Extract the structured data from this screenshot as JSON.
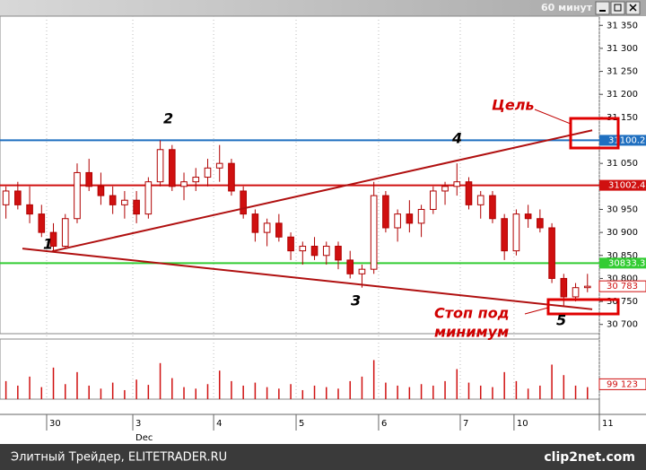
{
  "chart_data": {
    "type": "candlestick",
    "window_title": "60 минут",
    "xlim": [
      -0.5,
      50
    ],
    "ylim": [
      30680,
      31370
    ],
    "yticks": [
      {
        "value": 31350,
        "label": "31 350"
      },
      {
        "value": 31300,
        "label": "31 300"
      },
      {
        "value": 31250,
        "label": "31 250"
      },
      {
        "value": 31200,
        "label": "31 200"
      },
      {
        "value": 31150,
        "label": "31 150"
      },
      {
        "value": 31100,
        "label": "31 100"
      },
      {
        "value": 31050,
        "label": "31 050"
      },
      {
        "value": 31000,
        "label": "31 000"
      },
      {
        "value": 30950,
        "label": "30 950"
      },
      {
        "value": 30900,
        "label": "30 900"
      },
      {
        "value": 30850,
        "label": "30 850"
      },
      {
        "value": 30800,
        "label": "30 800"
      },
      {
        "value": 30750,
        "label": "30 750"
      },
      {
        "value": 30700,
        "label": "30 700"
      }
    ],
    "xticks": [
      {
        "value": 3.43,
        "label": "30"
      },
      {
        "value": 10.69,
        "label": "3"
      },
      {
        "value": 17.5,
        "label": "4"
      },
      {
        "value": 24.45,
        "label": "5"
      },
      {
        "value": 31.4,
        "label": "6"
      },
      {
        "value": 38.28,
        "label": "7"
      },
      {
        "value": 42.81,
        "label": "10"
      },
      {
        "value": 50,
        "label": "11"
      }
    ],
    "x_sublabel": "Dec",
    "open": [
      30960,
      30990,
      30960,
      30940,
      30900,
      30870,
      30930,
      31030,
      31000,
      30980,
      30960,
      30970,
      30940,
      31010,
      31080,
      31000,
      31010,
      31020,
      31040,
      31050,
      30990,
      30940,
      30900,
      30920,
      30890,
      30860,
      30870,
      30850,
      30870,
      30840,
      30810,
      30820,
      30980,
      30910,
      30940,
      30920,
      30950,
      30990,
      31000,
      31010,
      30960,
      30980,
      30930,
      30860,
      30940,
      30930,
      30910,
      30800,
      30760,
      30780
    ],
    "high": [
      31000,
      31010,
      31000,
      30960,
      30920,
      30940,
      31050,
      31060,
      31030,
      31000,
      30990,
      30990,
      31020,
      31100,
      31090,
      31030,
      31040,
      31060,
      31090,
      31060,
      31000,
      30950,
      30930,
      30940,
      30900,
      30880,
      30890,
      30880,
      30880,
      30860,
      30830,
      31010,
      30990,
      30950,
      30970,
      30960,
      31000,
      31010,
      31050,
      31020,
      30990,
      30990,
      30940,
      30950,
      30960,
      30950,
      30920,
      30810,
      30790,
      30810
    ],
    "low": [
      30930,
      30950,
      30920,
      30890,
      30860,
      30865,
      30920,
      30990,
      30960,
      30940,
      30930,
      30920,
      30930,
      31000,
      30990,
      30970,
      30990,
      31000,
      31010,
      30980,
      30930,
      30880,
      30870,
      30880,
      30840,
      30830,
      30840,
      30830,
      30820,
      30800,
      30780,
      30810,
      30900,
      30880,
      30900,
      30890,
      30940,
      30960,
      30980,
      30950,
      30930,
      30920,
      30840,
      30850,
      30910,
      30900,
      30790,
      30740,
      30750,
      30770
    ],
    "close": [
      30990,
      30960,
      30940,
      30900,
      30870,
      30930,
      31030,
      31000,
      30980,
      30960,
      30970,
      30940,
      31010,
      31080,
      31000,
      31010,
      31020,
      31040,
      31050,
      30990,
      30940,
      30900,
      30920,
      30890,
      30860,
      30870,
      30850,
      30870,
      30840,
      30810,
      30820,
      30980,
      30910,
      30940,
      30920,
      30950,
      30990,
      31000,
      31010,
      30960,
      30980,
      30930,
      30860,
      30940,
      30930,
      30910,
      30800,
      30760,
      30780,
      30783
    ],
    "color_up": "#ffffff",
    "color_down": "#d01010",
    "candle_outline": "#b00000",
    "hlines": [
      {
        "value": 31100.2,
        "color": "#1f6fc0"
      },
      {
        "value": 31002.4,
        "color": "#d01010"
      },
      {
        "value": 30833.3,
        "color": "#33cc33"
      }
    ],
    "last_price": {
      "value": 30783,
      "label": "30 783"
    },
    "trendlines": [
      {
        "x": [
          3.88,
          49.4
        ],
        "y": [
          30859,
          31122
        ]
      },
      {
        "x": [
          1.39,
          49.4
        ],
        "y": [
          30865,
          30733
        ]
      }
    ],
    "trendline_color": "#b01010",
    "points": [
      "1",
      "2",
      "3",
      "4",
      "5"
    ],
    "target_label": "Цель",
    "stop_label": [
      "Стоп под",
      "минимум"
    ],
    "volume": [
      120000,
      90000,
      150000,
      80000,
      210000,
      100000,
      180000,
      90000,
      70000,
      110000,
      60000,
      130000,
      95000,
      240000,
      140000,
      80000,
      70000,
      100000,
      190000,
      120000,
      90000,
      110000,
      80000,
      70000,
      100000,
      60000,
      90000,
      80000,
      70000,
      120000,
      150000,
      260000,
      110000,
      90000,
      80000,
      100000,
      90000,
      120000,
      200000,
      110000,
      90000,
      80000,
      180000,
      120000,
      70000,
      90000,
      230000,
      160000,
      90000,
      80000
    ],
    "volume_ylim": [
      0,
      400000
    ],
    "volume_tick": {
      "value": 99123,
      "label": "99 123"
    },
    "footer_left": "Элитный Трейдер, ELITETRADER.RU",
    "footer_right": "clip2net.com"
  }
}
